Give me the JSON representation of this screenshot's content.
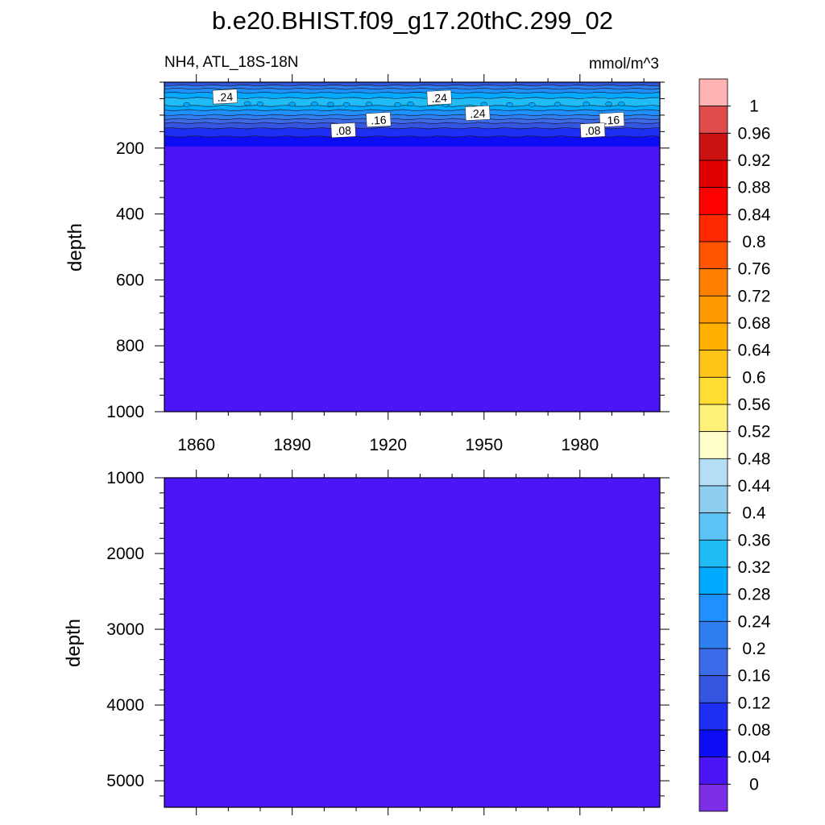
{
  "title": "b.e20.BHIST.f09_g17.20thC.299_02",
  "subtitle_left": "NH4, ATL_18S-18N",
  "subtitle_right": "mmol/m^3",
  "colors": {
    "background_fill": "#4a16f5",
    "contour_line": "#1a1a1a",
    "label_box": "#ffffff"
  },
  "chart_data": [
    {
      "type": "heatmap",
      "panel": "upper",
      "xlabel": "",
      "ylabel": "depth",
      "xlim": [
        1850,
        2005
      ],
      "ylim": [
        1000,
        0
      ],
      "x_ticks": [
        1860,
        1890,
        1920,
        1950,
        1980
      ],
      "y_ticks": [
        200,
        400,
        600,
        800,
        1000
      ],
      "y_tick_labels": [
        "200",
        "400",
        "600",
        "800",
        "1000"
      ],
      "bands": [
        {
          "depth_top": 0,
          "depth_bottom": 10,
          "level": 0.12
        },
        {
          "depth_top": 10,
          "depth_bottom": 20,
          "level": 0.2
        },
        {
          "depth_top": 20,
          "depth_bottom": 32,
          "level": 0.24
        },
        {
          "depth_top": 32,
          "depth_bottom": 48,
          "level": 0.28
        },
        {
          "depth_top": 48,
          "depth_bottom": 72,
          "level": 0.32
        },
        {
          "depth_top": 72,
          "depth_bottom": 85,
          "level": 0.28
        },
        {
          "depth_top": 85,
          "depth_bottom": 100,
          "level": 0.24
        },
        {
          "depth_top": 100,
          "depth_bottom": 112,
          "level": 0.2
        },
        {
          "depth_top": 112,
          "depth_bottom": 124,
          "level": 0.16
        },
        {
          "depth_top": 124,
          "depth_bottom": 140,
          "level": 0.12
        },
        {
          "depth_top": 140,
          "depth_bottom": 165,
          "level": 0.08
        },
        {
          "depth_top": 165,
          "depth_bottom": 195,
          "level": 0.04
        }
      ],
      "contour_labels": [
        {
          "text": ".24",
          "year": 1869,
          "depth": 45
        },
        {
          "text": ".24",
          "year": 1936,
          "depth": 48
        },
        {
          "text": ".24",
          "year": 1948,
          "depth": 95
        },
        {
          "text": ".16",
          "year": 1917,
          "depth": 115
        },
        {
          "text": ".16",
          "year": 1990,
          "depth": 115
        },
        {
          "text": ".08",
          "year": 1906,
          "depth": 147
        },
        {
          "text": ".08",
          "year": 1984,
          "depth": 147
        }
      ],
      "patches": [
        {
          "year": 1857,
          "depth": 68
        },
        {
          "year": 1876,
          "depth": 65
        },
        {
          "year": 1880,
          "depth": 66
        },
        {
          "year": 1890,
          "depth": 67
        },
        {
          "year": 1897,
          "depth": 66
        },
        {
          "year": 1902,
          "depth": 67
        },
        {
          "year": 1907,
          "depth": 68
        },
        {
          "year": 1914,
          "depth": 66
        },
        {
          "year": 1923,
          "depth": 68
        },
        {
          "year": 1927,
          "depth": 66
        },
        {
          "year": 1938,
          "depth": 68
        },
        {
          "year": 1950,
          "depth": 67
        },
        {
          "year": 1958,
          "depth": 68
        },
        {
          "year": 1965,
          "depth": 68
        },
        {
          "year": 1973,
          "depth": 67
        },
        {
          "year": 1982,
          "depth": 66
        },
        {
          "year": 1989,
          "depth": 66
        },
        {
          "year": 1993,
          "depth": 66
        }
      ]
    },
    {
      "type": "heatmap",
      "panel": "lower",
      "xlabel": "",
      "ylabel": "depth",
      "xlim": [
        1850,
        2005
      ],
      "ylim": [
        5350,
        1000
      ],
      "x_ticks": [
        1860,
        1890,
        1920,
        1950,
        1980
      ],
      "y_ticks": [
        1000,
        2000,
        3000,
        4000,
        5000
      ],
      "y_tick_labels": [
        "1000",
        "2000",
        "3000",
        "4000",
        "5000"
      ],
      "level": 0.0
    }
  ],
  "colorbar": {
    "labels": [
      "1",
      "0.96",
      "0.92",
      "0.88",
      "0.84",
      "0.8",
      "0.76",
      "0.72",
      "0.68",
      "0.64",
      "0.6",
      "0.56",
      "0.52",
      "0.48",
      "0.44",
      "0.4",
      "0.36",
      "0.32",
      "0.28",
      "0.24",
      "0.2",
      "0.16",
      "0.12",
      "0.08",
      "0.04",
      "0"
    ],
    "colors": [
      "#ffb3b3",
      "#e04b4b",
      "#cc1111",
      "#e00000",
      "#ff0000",
      "#ff2a00",
      "#ff5500",
      "#ff7f00",
      "#ff9900",
      "#ffb000",
      "#ffc418",
      "#ffdd33",
      "#fff27a",
      "#ffffcc",
      "#b3def5",
      "#8fcdee",
      "#5bc3f5",
      "#1fbcf5",
      "#00aaff",
      "#1e90ff",
      "#2e7ef0",
      "#3b6be8",
      "#3455e0",
      "#1e2ef2",
      "#0d0df5",
      "#4a16f5",
      "#7b2ee6"
    ]
  }
}
